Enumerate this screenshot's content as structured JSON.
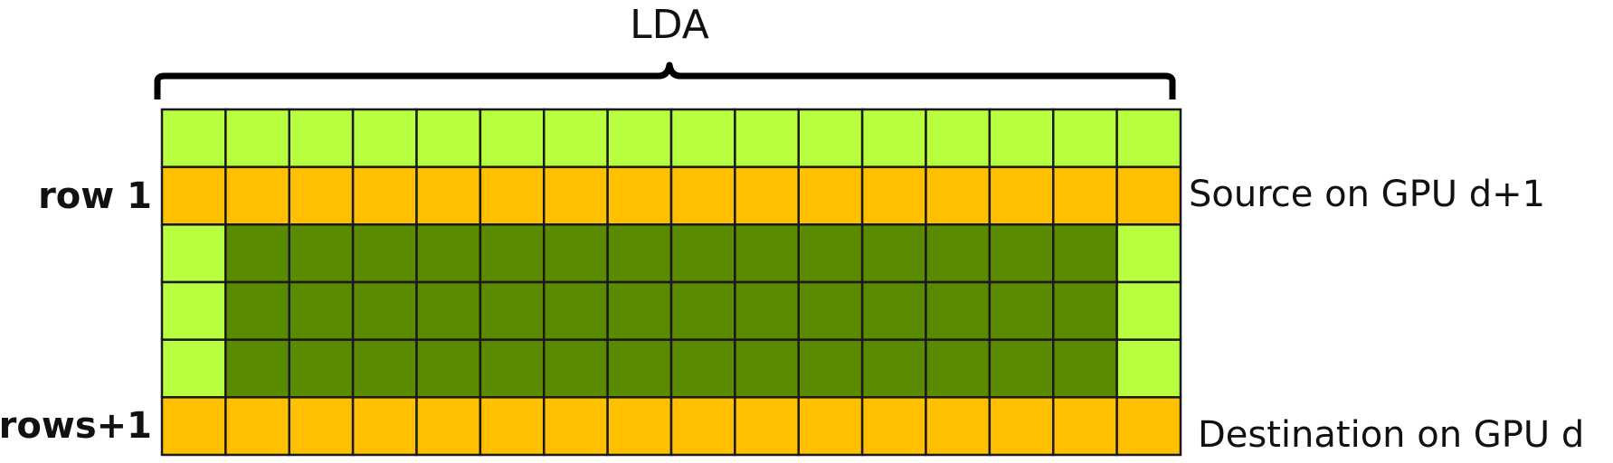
{
  "labels": {
    "top": "LDA",
    "row_first": "row 1",
    "row_last": "rows+1",
    "source": "Source on GPU d+1",
    "destination": "Destination on GPU d"
  },
  "colors": {
    "halo": "#b8ff40",
    "exchange": "#ffc000",
    "interior": "#5a8a00",
    "border": "#1a1a1a",
    "bracket": "#000000"
  },
  "grid": {
    "columns": 16,
    "rows": [
      "halo",
      "exchange",
      "interior",
      "interior",
      "interior",
      "exchange"
    ],
    "interior_edge_type": "halo"
  }
}
